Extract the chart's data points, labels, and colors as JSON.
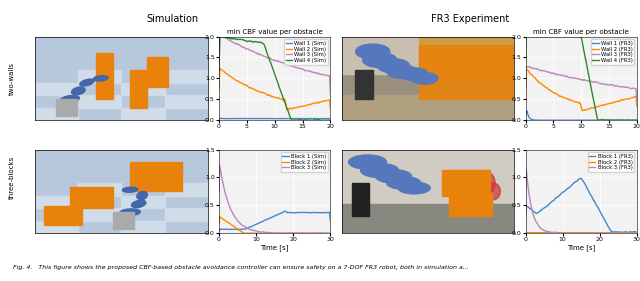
{
  "top_title_left": "Simulation",
  "top_title_right": "FR3 Experiment",
  "plot_title": "min CBF value per obstacle",
  "row_labels": [
    "two-walls",
    "three-blocks"
  ],
  "sim_wall_colors": [
    "#4488cc",
    "#ff8c00",
    "#bb88bb",
    "#2a8a2a"
  ],
  "fr3_wall_colors": [
    "#4488cc",
    "#ff8c00",
    "#bb88bb",
    "#2a8a2a"
  ],
  "sim_block_colors": [
    "#4488cc",
    "#ff8c00",
    "#bb88bb"
  ],
  "fr3_block_colors": [
    "#4488cc",
    "#ff8c00",
    "#bb88bb"
  ],
  "wall_ylim_sim": [
    0.0,
    2.0
  ],
  "wall_ylim_fr3": [
    0.0,
    2.0
  ],
  "wall_yticks_sim": [
    0.0,
    0.5,
    1.0,
    1.5,
    2.0
  ],
  "wall_yticks_fr3": [
    0.0,
    0.5,
    1.0,
    1.5,
    2.0
  ],
  "wall_xlim": [
    0,
    20
  ],
  "wall_xticks": [
    0,
    5,
    10,
    15,
    20
  ],
  "block_ylim_sim": [
    0.0,
    1.5
  ],
  "block_ylim_fr3": [
    0.0,
    1.5
  ],
  "block_yticks_sim": [
    0.0,
    0.5,
    1.0,
    1.5
  ],
  "block_yticks_fr3": [
    0.0,
    0.5,
    1.0,
    1.5
  ],
  "block_xlim": [
    0,
    30
  ],
  "block_xticks": [
    0,
    10,
    20,
    30
  ],
  "xlabel": "Time [s]",
  "caption": "Fig. 4.   This figure shows the proposed CBF-based obstacle avoidance controller can ensure safety on a 7-DOF FR3 robot, both in simulation a...",
  "sim_img_bg_top": "#c5cfe0",
  "sim_img_bg_bottom": "#d0d8e8",
  "fr3_img_bg_top": "#b0a898",
  "fr3_img_bg_bottom": "#888878",
  "lw": 1.0
}
